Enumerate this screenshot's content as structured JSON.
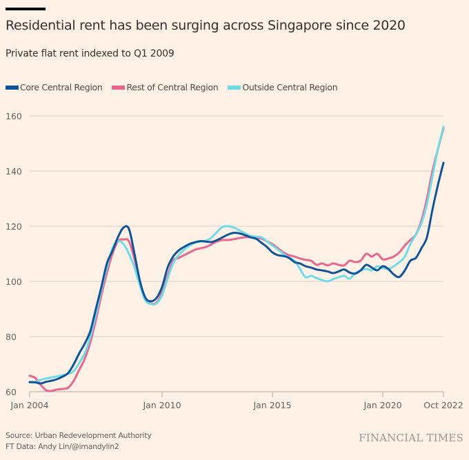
{
  "header": {
    "title": "Residential rent has been surging across Singapore since 2020",
    "subtitle": "Private flat rent indexed to Q1 2009"
  },
  "footer": {
    "source": "Source: Urban Redevelopment Authority",
    "credit": "FT Data: Andy Lin/@imandylin2",
    "brand": "FINANCIAL TIMES"
  },
  "chart_data": {
    "type": "line",
    "title": "Residential rent has been surging across Singapore since 2020",
    "subtitle": "Private flat rent indexed to Q1 2009",
    "xlabel": "",
    "ylabel": "",
    "xlim": [
      2004.0,
      2022.75
    ],
    "ylim": [
      60,
      160
    ],
    "grid": true,
    "legend": "top-left",
    "yticks": [
      60,
      80,
      100,
      120,
      140,
      160
    ],
    "xticks": [
      {
        "t": 2004.0,
        "label": "Jan 2004"
      },
      {
        "t": 2010.0,
        "label": "Jan 2010"
      },
      {
        "t": 2015.0,
        "label": "Jan 2015"
      },
      {
        "t": 2020.0,
        "label": "Jan 2020"
      },
      {
        "t": 2022.75,
        "label": "Oct 2022"
      }
    ],
    "series": [
      {
        "name": "Core Central Region",
        "color": "#0f5499",
        "x": [
          2004.0,
          2004.25,
          2004.5,
          2004.75,
          2005.0,
          2005.25,
          2005.5,
          2005.75,
          2006.0,
          2006.25,
          2006.5,
          2006.75,
          2007.0,
          2007.25,
          2007.5,
          2007.75,
          2008.0,
          2008.25,
          2008.5,
          2008.75,
          2009.0,
          2009.25,
          2009.5,
          2009.75,
          2010.0,
          2010.25,
          2010.5,
          2010.75,
          2011.0,
          2011.25,
          2011.5,
          2011.75,
          2012.0,
          2012.25,
          2012.5,
          2012.75,
          2013.0,
          2013.25,
          2013.5,
          2013.75,
          2014.0,
          2014.25,
          2014.5,
          2014.75,
          2015.0,
          2015.25,
          2015.5,
          2015.75,
          2016.0,
          2016.25,
          2016.5,
          2016.75,
          2017.0,
          2017.25,
          2017.5,
          2017.75,
          2018.0,
          2018.25,
          2018.5,
          2018.75,
          2019.0,
          2019.25,
          2019.5,
          2019.75,
          2020.0,
          2020.25,
          2020.5,
          2020.75,
          2021.0,
          2021.25,
          2021.5,
          2021.75,
          2022.0,
          2022.25,
          2022.5,
          2022.75
        ],
        "values": [
          63.5,
          63.4,
          63.0,
          63.6,
          64.0,
          64.6,
          65.5,
          66.8,
          70.0,
          74.0,
          77.5,
          82.0,
          90.0,
          98.0,
          106.5,
          111.0,
          116.0,
          119.5,
          119.0,
          110.0,
          100.0,
          94.0,
          92.8,
          94.0,
          98.0,
          105.0,
          109.0,
          111.2,
          112.5,
          113.6,
          114.2,
          114.6,
          114.4,
          114.3,
          115.0,
          116.0,
          117.0,
          117.6,
          117.4,
          116.8,
          116.0,
          115.5,
          114.0,
          112.5,
          110.5,
          109.5,
          109.2,
          108.5,
          107.0,
          106.5,
          105.5,
          105.0,
          104.3,
          104.0,
          103.6,
          103.0,
          103.6,
          104.3,
          103.2,
          102.8,
          104.0,
          106.0,
          105.0,
          104.0,
          105.5,
          104.5,
          102.5,
          101.6,
          104.0,
          107.5,
          108.5,
          112.0,
          116.0,
          126.0,
          135.0,
          143.0
        ]
      },
      {
        "name": "Rest of Central Region",
        "color": "#e9678f",
        "x": [
          2004.0,
          2004.25,
          2004.5,
          2004.75,
          2005.0,
          2005.25,
          2005.5,
          2005.75,
          2006.0,
          2006.25,
          2006.5,
          2006.75,
          2007.0,
          2007.25,
          2007.5,
          2007.75,
          2008.0,
          2008.25,
          2008.5,
          2008.75,
          2009.0,
          2009.25,
          2009.5,
          2009.75,
          2010.0,
          2010.25,
          2010.5,
          2010.75,
          2011.0,
          2011.25,
          2011.5,
          2011.75,
          2012.0,
          2012.25,
          2012.5,
          2012.75,
          2013.0,
          2013.25,
          2013.5,
          2013.75,
          2014.0,
          2014.25,
          2014.5,
          2014.75,
          2015.0,
          2015.25,
          2015.5,
          2015.75,
          2016.0,
          2016.25,
          2016.5,
          2016.75,
          2017.0,
          2017.25,
          2017.5,
          2017.75,
          2018.0,
          2018.25,
          2018.5,
          2018.75,
          2019.0,
          2019.25,
          2019.5,
          2019.75,
          2020.0,
          2020.25,
          2020.5,
          2020.75,
          2021.0,
          2021.25,
          2021.5,
          2021.75,
          2022.0,
          2022.25,
          2022.5,
          2022.75
        ],
        "values": [
          65.8,
          65.0,
          62.5,
          60.5,
          60.3,
          60.8,
          61.0,
          61.5,
          64.0,
          68.0,
          72.0,
          78.0,
          86.0,
          95.0,
          103.0,
          110.0,
          114.5,
          115.2,
          114.5,
          108.0,
          99.5,
          93.5,
          92.0,
          92.3,
          96.0,
          102.0,
          107.5,
          108.5,
          109.5,
          110.5,
          111.5,
          112.0,
          112.5,
          113.5,
          114.5,
          115.0,
          115.0,
          115.3,
          115.7,
          116.0,
          116.0,
          115.8,
          115.5,
          114.5,
          113.5,
          112.0,
          110.5,
          109.5,
          109.0,
          108.3,
          107.8,
          107.5,
          106.0,
          106.5,
          105.8,
          106.5,
          106.0,
          105.8,
          107.5,
          107.0,
          107.5,
          110.0,
          109.0,
          110.0,
          108.0,
          108.3,
          109.0,
          110.5,
          113.0,
          115.0,
          117.0,
          122.0,
          130.0,
          140.0,
          148.0,
          155.5
        ]
      },
      {
        "name": "Outside Central Region",
        "color": "#6fdbe6",
        "x": [
          2004.0,
          2004.25,
          2004.5,
          2004.75,
          2005.0,
          2005.25,
          2005.5,
          2005.75,
          2006.0,
          2006.25,
          2006.5,
          2006.75,
          2007.0,
          2007.25,
          2007.5,
          2007.75,
          2008.0,
          2008.25,
          2008.5,
          2008.75,
          2009.0,
          2009.25,
          2009.5,
          2009.75,
          2010.0,
          2010.25,
          2010.5,
          2010.75,
          2011.0,
          2011.25,
          2011.5,
          2011.75,
          2012.0,
          2012.25,
          2012.5,
          2012.75,
          2013.0,
          2013.25,
          2013.5,
          2013.75,
          2014.0,
          2014.25,
          2014.5,
          2014.75,
          2015.0,
          2015.25,
          2015.5,
          2015.75,
          2016.0,
          2016.25,
          2016.5,
          2016.75,
          2017.0,
          2017.25,
          2017.5,
          2017.75,
          2018.0,
          2018.25,
          2018.5,
          2018.75,
          2019.0,
          2019.25,
          2019.5,
          2019.75,
          2020.0,
          2020.25,
          2020.5,
          2020.75,
          2021.0,
          2021.25,
          2021.5,
          2021.75,
          2022.0,
          2022.25,
          2022.5,
          2022.75
        ],
        "values": [
          63.3,
          63.5,
          64.3,
          64.8,
          65.2,
          65.6,
          66.0,
          66.5,
          67.5,
          70.5,
          74.0,
          80.0,
          88.0,
          97.0,
          105.0,
          112.0,
          114.5,
          113.5,
          110.0,
          105.0,
          98.5,
          93.0,
          91.8,
          92.0,
          95.0,
          101.0,
          106.5,
          109.5,
          111.5,
          113.0,
          114.0,
          114.5,
          114.8,
          116.0,
          118.0,
          119.8,
          120.0,
          119.5,
          118.5,
          117.5,
          116.5,
          116.2,
          116.0,
          114.5,
          113.0,
          111.5,
          110.0,
          108.5,
          107.5,
          104.5,
          101.5,
          102.0,
          101.2,
          100.5,
          100.0,
          100.8,
          101.5,
          102.0,
          101.0,
          103.0,
          104.0,
          104.5,
          104.0,
          105.5,
          104.8,
          104.5,
          105.5,
          107.0,
          109.0,
          113.5,
          117.0,
          121.0,
          128.0,
          138.0,
          148.0,
          156.0
        ]
      }
    ]
  }
}
